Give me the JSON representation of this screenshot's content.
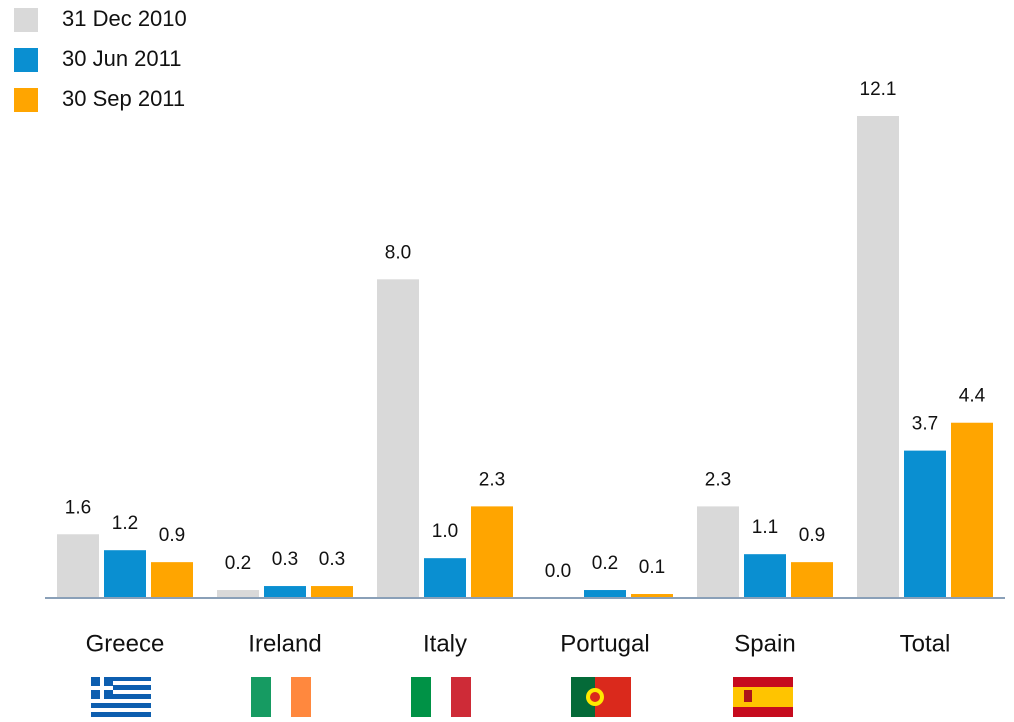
{
  "chart_data": {
    "type": "bar",
    "categories": [
      "Greece",
      "Ireland",
      "Italy",
      "Portugal",
      "Spain",
      "Total"
    ],
    "series": [
      {
        "name": "31 Dec 2010",
        "color": "#d9d9d9",
        "values": [
          1.6,
          0.2,
          8.0,
          0.0,
          2.3,
          12.1
        ],
        "value_labels": [
          "1.6",
          "0.2",
          "8.0",
          "0.0",
          "2.3",
          "12.1"
        ]
      },
      {
        "name": "30 Jun 2011",
        "color": "#0a8fd1",
        "values": [
          1.2,
          0.3,
          1.0,
          0.2,
          1.1,
          3.7
        ],
        "value_labels": [
          "1.2",
          "0.3",
          "1.0",
          "0.2",
          "1.1",
          "3.7"
        ]
      },
      {
        "name": "30 Sep 2011",
        "color": "#ffa500",
        "values": [
          0.9,
          0.3,
          2.3,
          0.1,
          0.9,
          4.4
        ],
        "value_labels": [
          "0.9",
          "0.3",
          "2.3",
          "0.1",
          "0.9",
          "4.4"
        ]
      }
    ]
  }
}
